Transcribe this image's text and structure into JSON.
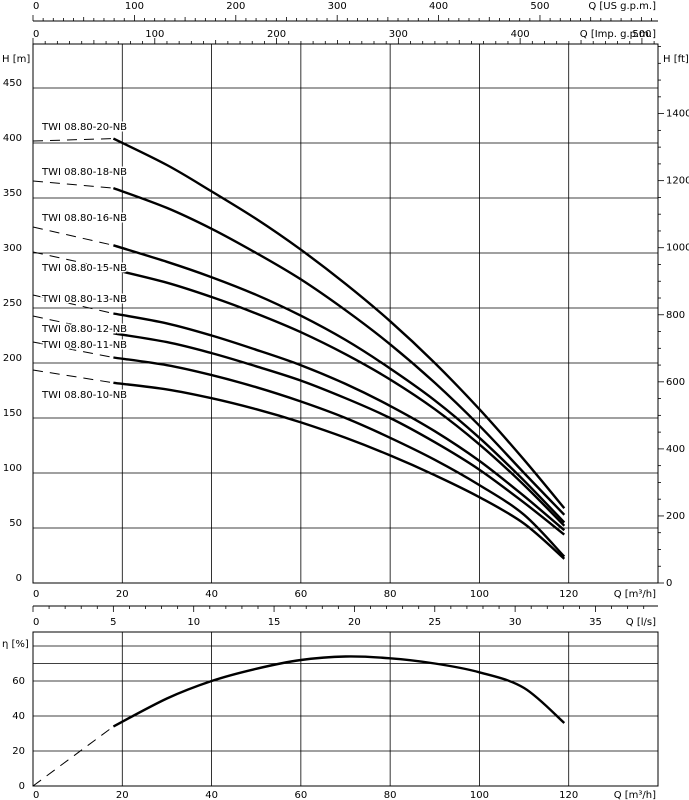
{
  "chart_data": [
    {
      "type": "line",
      "panel": "head",
      "xlabel": "Q [m³/h]",
      "ylabel": "H [m]",
      "y2label": "H [ft]",
      "xlim": [
        0,
        140
      ],
      "ylim": [
        0,
        490
      ],
      "y2lim": [
        0,
        1607.6
      ],
      "x_ticks": [
        0,
        20,
        40,
        60,
        80,
        100,
        120
      ],
      "y_ticks": [
        0,
        50,
        100,
        150,
        200,
        250,
        300,
        350,
        400,
        450
      ],
      "y2_ticks": [
        0,
        200,
        400,
        600,
        800,
        1000,
        1200,
        1400
      ],
      "grid": true,
      "top_axes": [
        {
          "label": "Q [US g.p.m.]",
          "max": 616.4,
          "ticks": [
            0,
            100,
            200,
            300,
            400,
            500
          ],
          "minor_step": 10
        },
        {
          "label": "Q [Imp. g.p.m.]",
          "max": 513.2,
          "ticks": [
            0,
            100,
            200,
            300,
            400,
            500
          ],
          "minor_step": 10
        }
      ],
      "bottom_secondary_axis": {
        "label": "Q [l/s]",
        "max": 38.89,
        "ticks": [
          0,
          5,
          10,
          15,
          20,
          25,
          30,
          35
        ],
        "minor_step": 1
      },
      "series": [
        {
          "name": "TWI 08.80-20-NB",
          "x": [
            0,
            18,
            30,
            40,
            50,
            60,
            70,
            80,
            90,
            100,
            110,
            119
          ],
          "y": [
            410,
            404,
            380,
            356,
            331,
            303,
            272,
            238,
            200,
            158,
            112,
            68
          ]
        },
        {
          "name": "TWI 08.80-18-NB",
          "x": [
            0,
            18,
            30,
            40,
            50,
            60,
            70,
            80,
            90,
            100,
            110,
            119
          ],
          "y": [
            370,
            359,
            341,
            322,
            300,
            276,
            248,
            217,
            182,
            143,
            100,
            62
          ]
        },
        {
          "name": "TWI 08.80-16-NB",
          "x": [
            0,
            18,
            30,
            40,
            50,
            60,
            70,
            80,
            90,
            100,
            110,
            119
          ],
          "y": [
            326,
            307,
            292,
            278,
            262,
            243,
            221,
            195,
            166,
            132,
            93,
            55
          ]
        },
        {
          "name": "TWI 08.80-15-NB",
          "x": [
            0,
            18,
            30,
            40,
            50,
            60,
            70,
            80,
            90,
            100,
            110,
            119
          ],
          "y": [
            305,
            285,
            273,
            260,
            245,
            228,
            208,
            185,
            158,
            126,
            89,
            52
          ]
        },
        {
          "name": "TWI 08.80-13-NB",
          "x": [
            0,
            18,
            30,
            40,
            50,
            60,
            70,
            80,
            90,
            100,
            110,
            119
          ],
          "y": [
            265,
            245,
            236,
            225,
            212,
            198,
            181,
            161,
            138,
            111,
            79,
            48
          ]
        },
        {
          "name": "TWI 08.80-12-NB",
          "x": [
            0,
            18,
            30,
            40,
            50,
            60,
            70,
            80,
            90,
            100,
            110,
            119
          ],
          "y": [
            246,
            227,
            219,
            209,
            197,
            184,
            168,
            150,
            128,
            103,
            73,
            44
          ]
        },
        {
          "name": "TWI 08.80-11-NB",
          "x": [
            0,
            18,
            30,
            40,
            50,
            60,
            70,
            80,
            90,
            100,
            110,
            119
          ],
          "y": [
            225,
            205,
            198,
            189,
            178,
            165,
            150,
            132,
            112,
            89,
            62,
            24
          ]
        },
        {
          "name": "TWI 08.80-10-NB",
          "x": [
            0,
            18,
            30,
            40,
            50,
            60,
            70,
            80,
            90,
            100,
            110,
            119
          ],
          "y": [
            204,
            182,
            176,
            168,
            158,
            146,
            132,
            116,
            98,
            78,
            54,
            22
          ]
        }
      ],
      "dashed_until_x": 18
    },
    {
      "type": "line",
      "panel": "efficiency",
      "xlabel": "Q [m³/h]",
      "ylabel": "η [%]",
      "xlim": [
        0,
        140
      ],
      "ylim": [
        0,
        88
      ],
      "x_ticks": [
        0,
        20,
        40,
        60,
        80,
        100,
        120
      ],
      "y_ticks": [
        0,
        20,
        40,
        60
      ],
      "grid": true,
      "series": [
        {
          "name": "",
          "x": [
            0,
            18,
            30,
            40,
            50,
            60,
            70,
            80,
            90,
            100,
            110,
            119
          ],
          "y": [
            0,
            34,
            50,
            60,
            67,
            72,
            74,
            73,
            70,
            65,
            56,
            36
          ]
        }
      ],
      "dashed_until_x": 18
    }
  ]
}
